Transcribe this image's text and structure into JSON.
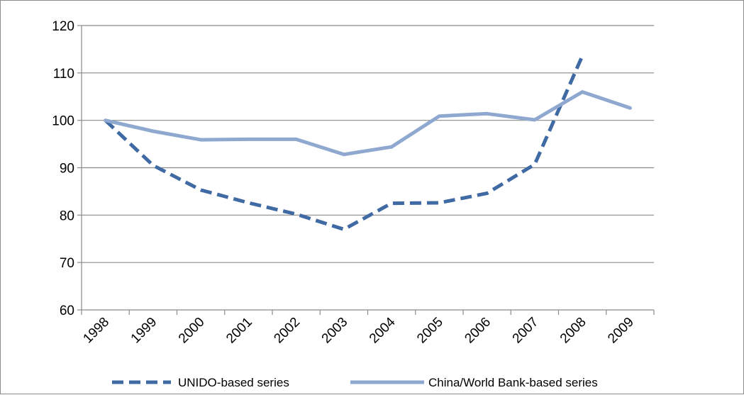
{
  "chart_data": {
    "type": "line",
    "x": [
      "1998",
      "1999",
      "2000",
      "2001",
      "2002",
      "2003",
      "2004",
      "2005",
      "2006",
      "2007",
      "2008",
      "2009"
    ],
    "series": [
      {
        "name": "UNIDO-based series",
        "values": [
          100,
          90.5,
          85.3,
          82.6,
          80.2,
          77.0,
          82.5,
          82.6,
          84.6,
          90.7,
          113.6,
          null
        ],
        "color": "#3f6aa3",
        "dash": "dashed"
      },
      {
        "name": "China/World Bank-based series",
        "values": [
          100,
          97.7,
          95.9,
          96.0,
          96.0,
          92.8,
          94.4,
          100.9,
          101.4,
          100.1,
          106.0,
          102.6
        ],
        "color": "#8fa8cf",
        "dash": "solid"
      }
    ],
    "ylim": [
      60,
      120
    ],
    "yticks": [
      60,
      70,
      80,
      90,
      100,
      110,
      120
    ],
    "grid": true,
    "legend": "bottom"
  }
}
